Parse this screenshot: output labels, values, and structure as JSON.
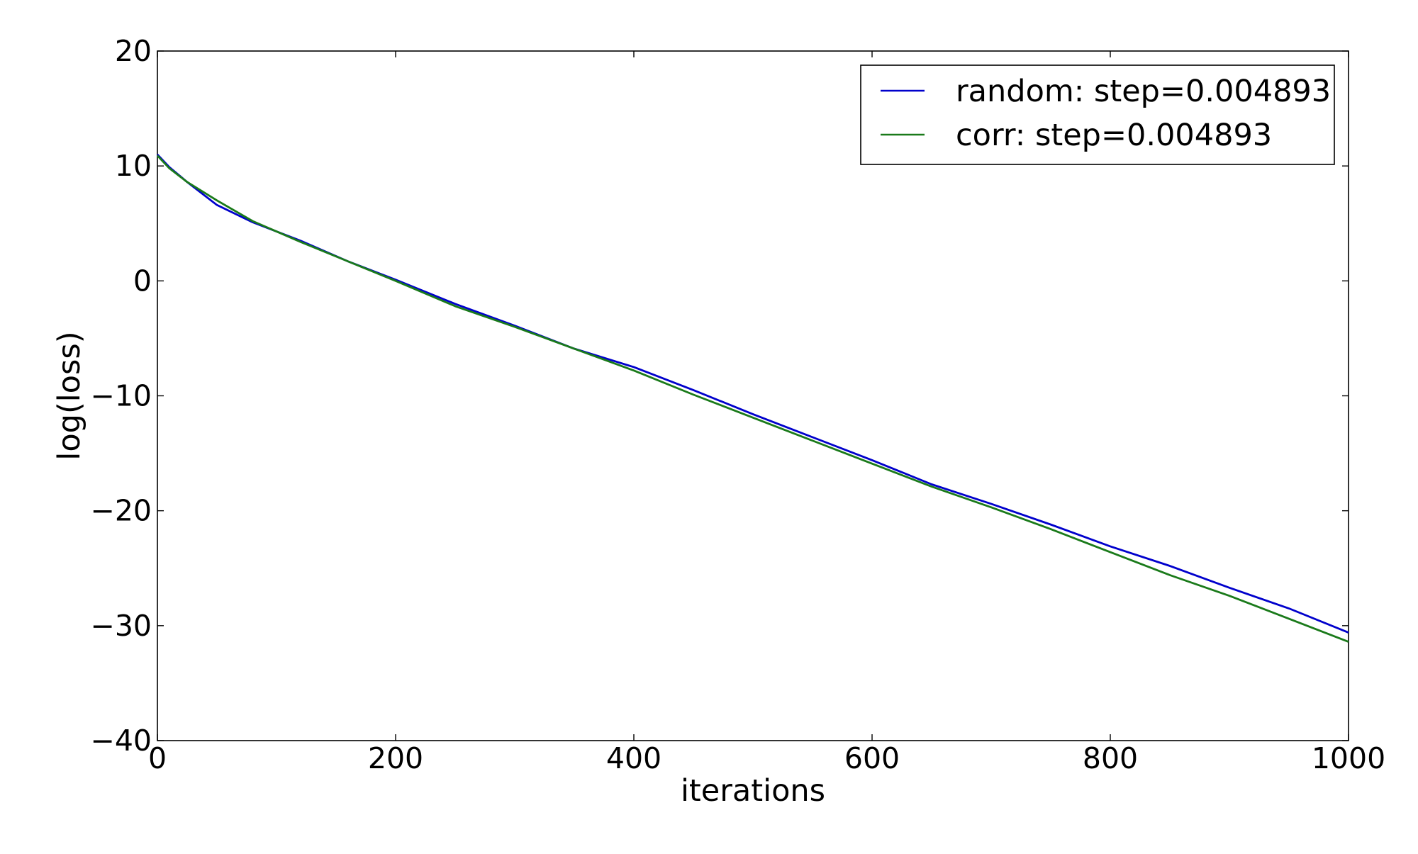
{
  "chart_data": {
    "type": "line",
    "xlabel": "iterations",
    "ylabel": "log(loss)",
    "xlim": [
      0,
      1000
    ],
    "ylim": [
      -40,
      20
    ],
    "xticks": [
      0,
      200,
      400,
      600,
      800,
      1000
    ],
    "yticks": [
      20,
      10,
      0,
      -10,
      -20,
      -30,
      -40
    ],
    "xtick_labels": [
      "0",
      "200",
      "400",
      "600",
      "800",
      "1000"
    ],
    "ytick_labels": [
      "20",
      "10",
      "0",
      "−10",
      "−20",
      "−30",
      "−40"
    ],
    "grid": false,
    "legend_position": "top-right",
    "series": [
      {
        "name": "random: step=0.004893",
        "color": "#0000cc",
        "x": [
          0,
          10,
          25,
          50,
          80,
          120,
          160,
          200,
          250,
          300,
          350,
          400,
          450,
          500,
          550,
          600,
          650,
          700,
          750,
          800,
          850,
          900,
          950,
          1000
        ],
        "y": [
          11.0,
          9.9,
          8.6,
          6.6,
          5.1,
          3.5,
          1.7,
          0.1,
          -2.0,
          -3.9,
          -5.9,
          -7.5,
          -9.5,
          -11.6,
          -13.6,
          -15.6,
          -17.7,
          -19.4,
          -21.2,
          -23.1,
          -24.8,
          -26.7,
          -28.5,
          -30.6
        ]
      },
      {
        "name": "corr: step=0.004893",
        "color": "#1a7a1a",
        "x": [
          0,
          10,
          25,
          50,
          80,
          120,
          160,
          200,
          250,
          300,
          350,
          400,
          450,
          500,
          550,
          600,
          650,
          700,
          750,
          800,
          850,
          900,
          950,
          1000
        ],
        "y": [
          10.9,
          9.8,
          8.6,
          7.0,
          5.2,
          3.4,
          1.7,
          0.0,
          -2.2,
          -4.0,
          -5.9,
          -7.8,
          -9.9,
          -11.9,
          -13.9,
          -15.9,
          -17.9,
          -19.7,
          -21.6,
          -23.6,
          -25.6,
          -27.4,
          -29.4,
          -31.4
        ]
      }
    ]
  }
}
